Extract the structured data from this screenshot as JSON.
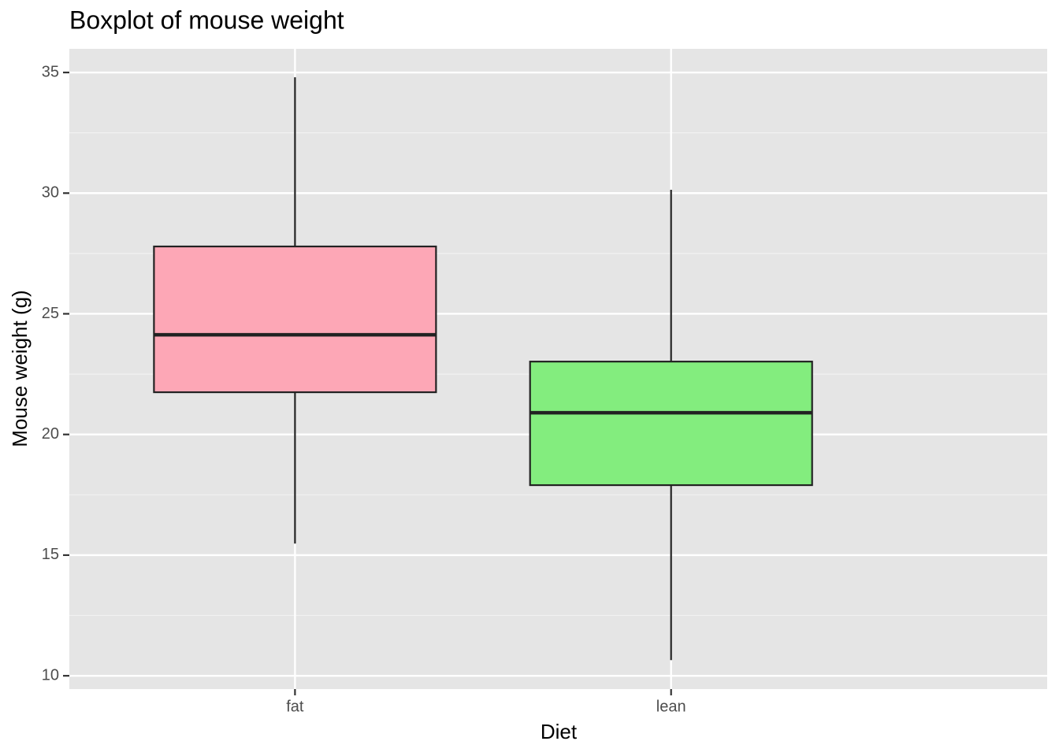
{
  "chart_data": {
    "type": "boxplot",
    "title": "Boxplot of mouse weight",
    "x_label": "Diet",
    "y_label": "Mouse weight (g)",
    "categories": [
      "fat",
      "lean"
    ],
    "boxes": [
      {
        "min": 15.48,
        "q1": 21.75,
        "median": 24.13,
        "q3": 27.79,
        "max": 34.8,
        "color": "#fda7b6"
      },
      {
        "min": 10.65,
        "q1": 17.9,
        "median": 20.9,
        "q3": 23.02,
        "max": 30.14,
        "color": "#83ed7e"
      }
    ],
    "ylim": [
      9.45,
      35.98
    ],
    "yticks": [
      10,
      15,
      20,
      25,
      30,
      35
    ],
    "minor_yticks": [
      12.5,
      17.5,
      22.5,
      27.5,
      32.5
    ],
    "grid": true
  }
}
